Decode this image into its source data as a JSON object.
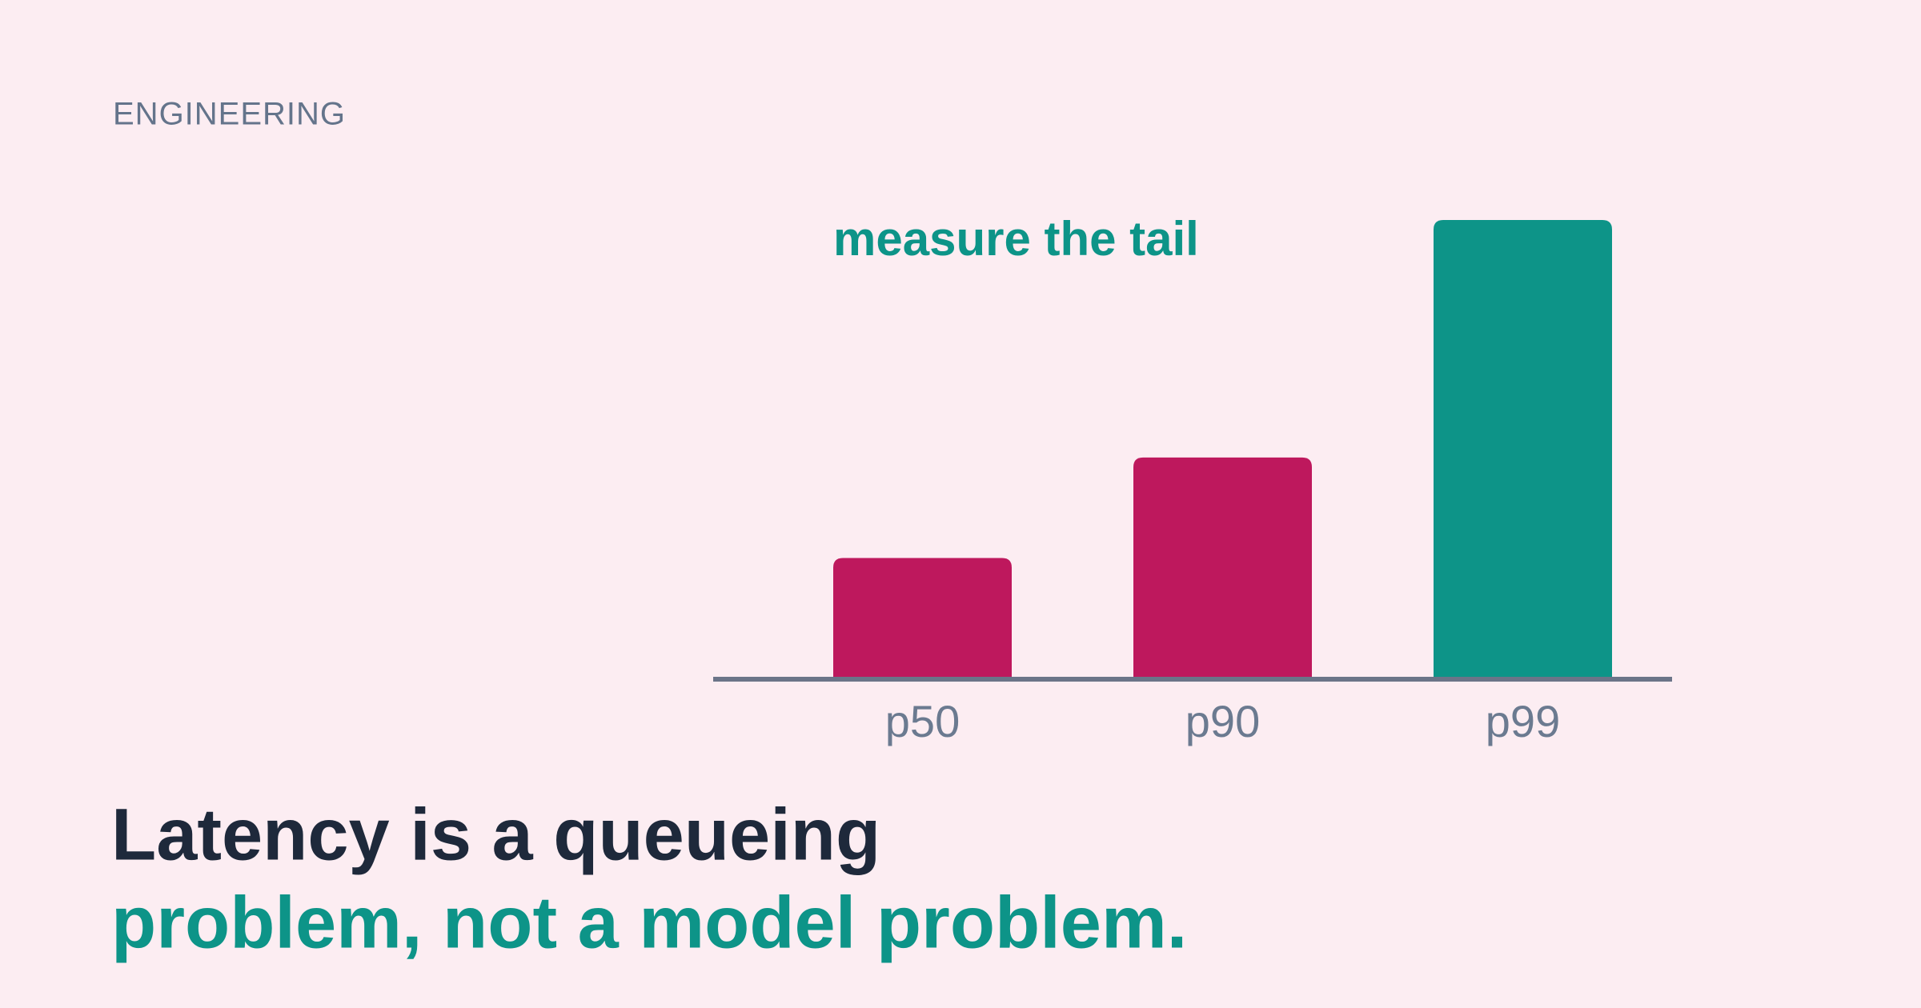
{
  "kicker": "ENGINEERING",
  "headline": {
    "line1": "Latency is a queueing",
    "line2": "problem, not a model problem."
  },
  "chart_data": {
    "type": "bar",
    "annotation": "measure the tail",
    "categories": [
      "p50",
      "p90",
      "p99"
    ],
    "values": [
      26,
      48,
      100
    ],
    "colors": [
      "#be185d",
      "#be185d",
      "#0d9488"
    ],
    "annotation_color": "#0d9488"
  }
}
